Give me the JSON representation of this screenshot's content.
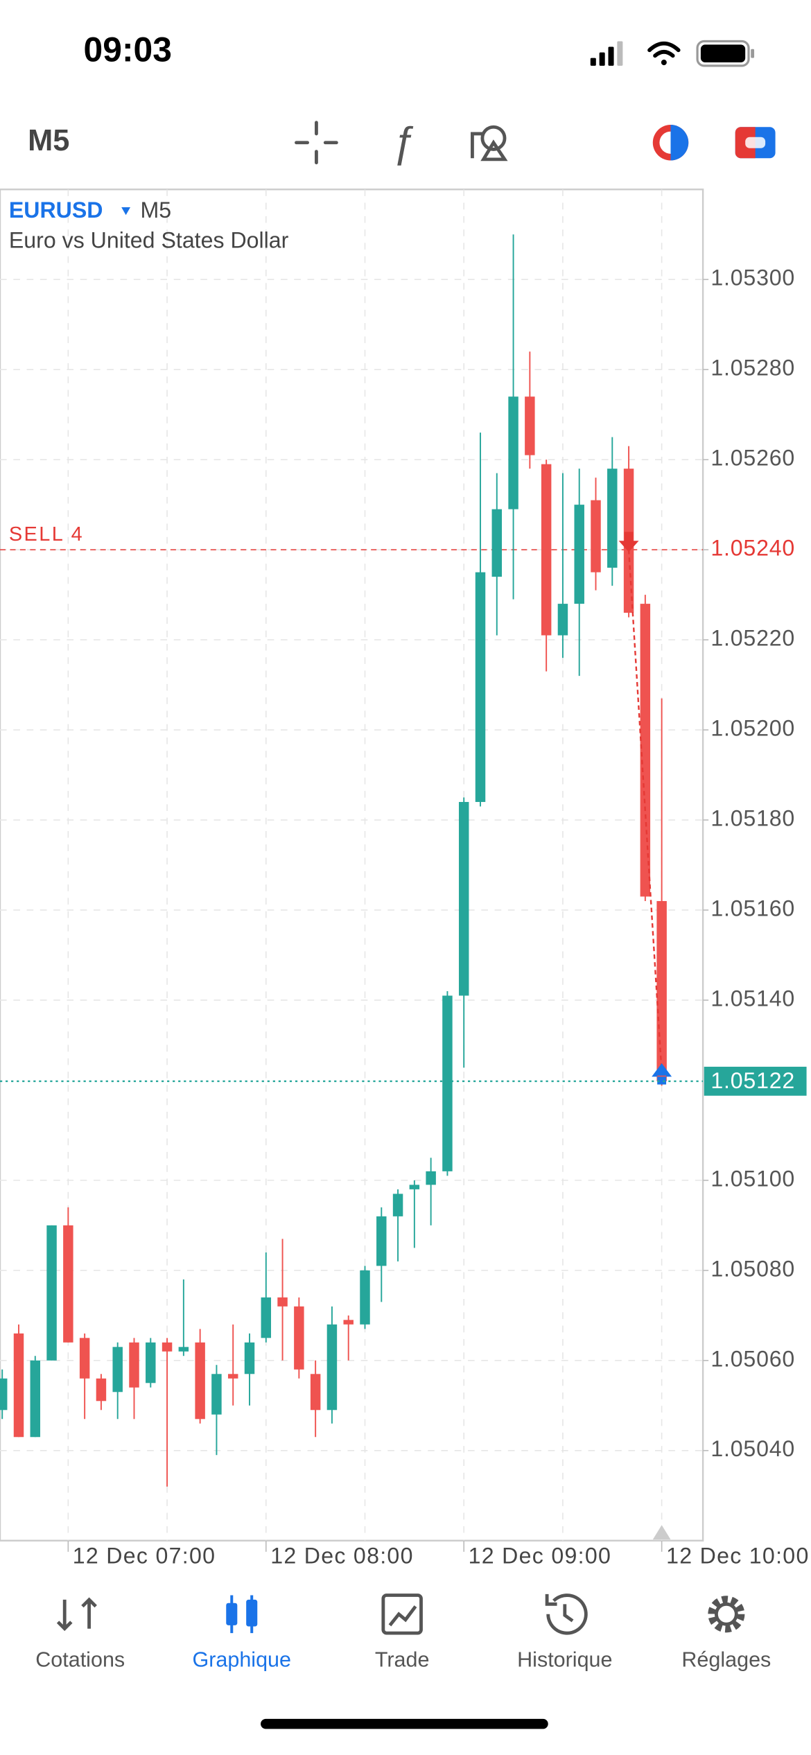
{
  "status_bar": {
    "time": "09:03"
  },
  "toolbar": {
    "timeframe": "M5"
  },
  "chart_data": {
    "type": "candlestick",
    "symbol": "EURUSD",
    "timeframe": "M5",
    "subtitle": "Euro vs United States Dollar",
    "categories": [
      null,
      null,
      null,
      null,
      "12 Dec 07:00",
      null,
      null,
      null,
      null,
      null,
      null,
      null,
      null,
      null,
      null,
      null,
      "12 Dec 08:00",
      null,
      null,
      null,
      null,
      null,
      null,
      null,
      null,
      null,
      null,
      null,
      "12 Dec 09:00",
      null,
      null,
      null,
      null,
      null,
      null,
      null,
      null,
      null,
      null,
      null,
      "12 Dec 10:00"
    ],
    "open": [
      1.05049,
      1.05066,
      1.05043,
      1.0506,
      1.0509,
      1.05065,
      1.05056,
      1.05053,
      1.05064,
      1.05055,
      1.05064,
      1.05062,
      1.05064,
      1.05048,
      1.05057,
      1.05057,
      1.05065,
      1.05074,
      1.05072,
      1.05057,
      1.05049,
      1.05069,
      1.05068,
      1.05081,
      1.05092,
      1.05098,
      1.05099,
      1.05102,
      1.05141,
      1.05184,
      1.05234,
      1.05249,
      1.05274,
      1.05259,
      1.05221,
      1.05228,
      1.05251,
      1.05236,
      1.05258,
      1.05228,
      1.05162
    ],
    "high": [
      1.05058,
      1.05068,
      1.05061,
      1.0509,
      1.05094,
      1.05066,
      1.05057,
      1.05064,
      1.05065,
      1.05065,
      1.05065,
      1.05078,
      1.05067,
      1.05059,
      1.05068,
      1.05066,
      1.05084,
      1.05087,
      1.05074,
      1.0506,
      1.05072,
      1.0507,
      1.05081,
      1.05094,
      1.05098,
      1.051,
      1.05105,
      1.05142,
      1.05185,
      1.05266,
      1.05257,
      1.0531,
      1.05284,
      1.0526,
      1.05257,
      1.05258,
      1.05256,
      1.05265,
      1.05263,
      1.0523,
      1.05207
    ],
    "low": [
      1.05047,
      1.05043,
      1.05043,
      1.0506,
      1.05064,
      1.05047,
      1.05049,
      1.05047,
      1.05047,
      1.05054,
      1.05032,
      1.05061,
      1.05046,
      1.05039,
      1.0505,
      1.0505,
      1.05064,
      1.0506,
      1.05056,
      1.05043,
      1.05046,
      1.0506,
      1.05067,
      1.05073,
      1.05082,
      1.05085,
      1.0509,
      1.05101,
      1.05125,
      1.05183,
      1.05221,
      1.05229,
      1.05258,
      1.05213,
      1.05216,
      1.05212,
      1.05231,
      1.05232,
      1.05225,
      1.05162,
      1.05121
    ],
    "close": [
      1.05056,
      1.05043,
      1.0506,
      1.0509,
      1.05064,
      1.05056,
      1.05051,
      1.05063,
      1.05054,
      1.05064,
      1.05062,
      1.05063,
      1.05047,
      1.05057,
      1.05056,
      1.05064,
      1.05074,
      1.05072,
      1.05058,
      1.05049,
      1.05068,
      1.05068,
      1.0508,
      1.05092,
      1.05097,
      1.05099,
      1.05102,
      1.05141,
      1.05184,
      1.05235,
      1.05249,
      1.05274,
      1.05261,
      1.05221,
      1.05228,
      1.0525,
      1.05235,
      1.05258,
      1.05226,
      1.05163,
      1.05122
    ],
    "up_color": "#26a69a",
    "down_color": "#ef5350",
    "ylim": [
      1.0502,
      1.0532
    ],
    "yticks": [
      {
        "value": 1.053,
        "label": "1.05300"
      },
      {
        "value": 1.0528,
        "label": "1.05280"
      },
      {
        "value": 1.0526,
        "label": "1.05260"
      },
      {
        "value": 1.0524,
        "label": "1.05240"
      },
      {
        "value": 1.0522,
        "label": "1.05220"
      },
      {
        "value": 1.052,
        "label": "1.05200"
      },
      {
        "value": 1.0518,
        "label": "1.05180"
      },
      {
        "value": 1.0516,
        "label": "1.05160"
      },
      {
        "value": 1.0514,
        "label": "1.05140"
      },
      {
        "value": 1.051,
        "label": "1.05100"
      },
      {
        "value": 1.0508,
        "label": "1.05080"
      },
      {
        "value": 1.0506,
        "label": "1.05060"
      },
      {
        "value": 1.0504,
        "label": "1.05040"
      }
    ],
    "grid": true,
    "order_line": {
      "label": "SELL 4",
      "value": 1.0524,
      "color": "#e53935"
    },
    "current_price": {
      "value": 1.05122,
      "color": "#26a69a"
    },
    "trade": {
      "entry": 1.0524,
      "exit": 1.05124
    }
  },
  "nav": {
    "tabs": [
      "Cotations",
      "Graphique",
      "Trade",
      "Historique",
      "Réglages"
    ],
    "active": 1
  }
}
